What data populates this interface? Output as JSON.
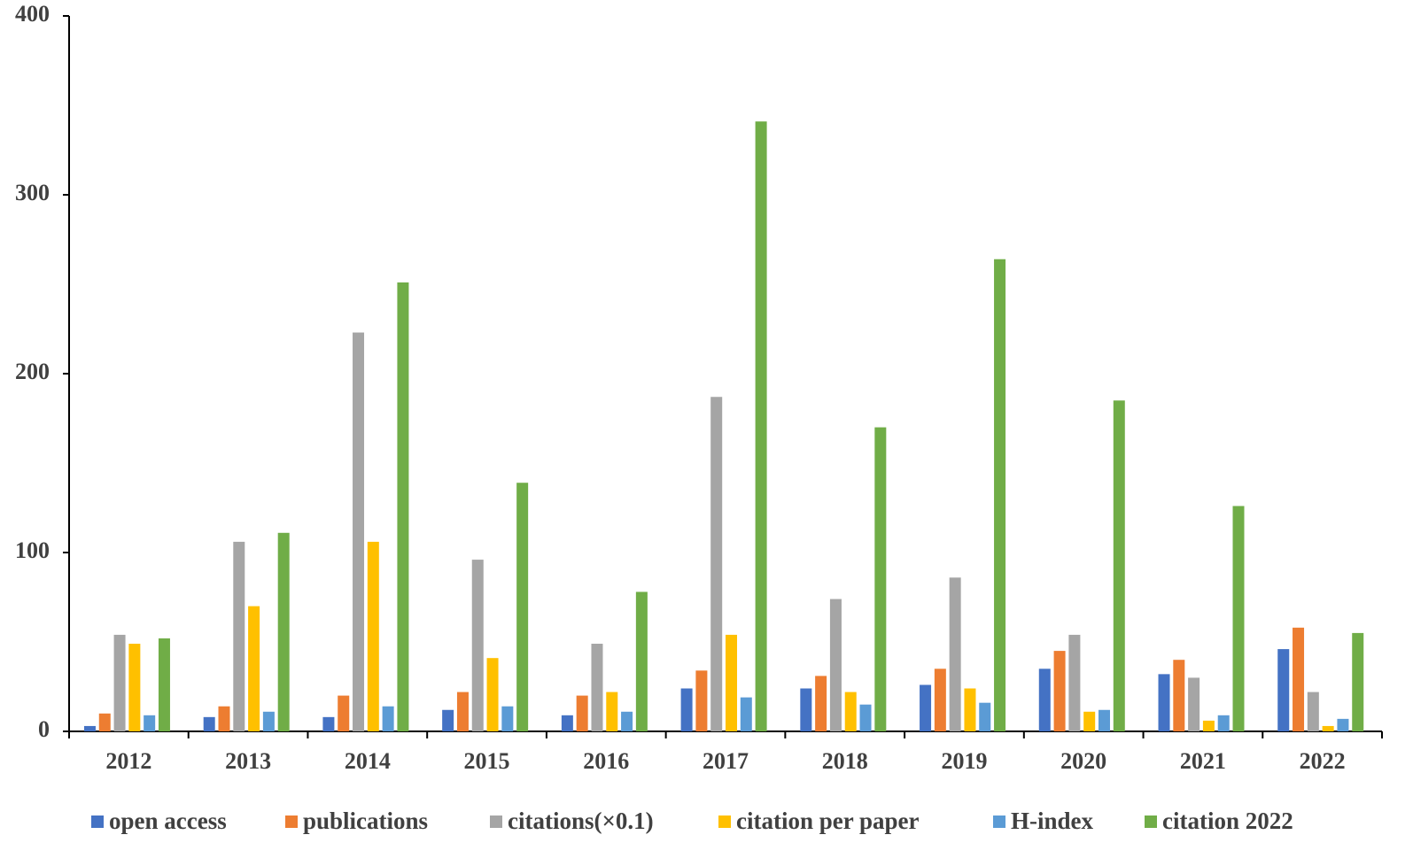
{
  "chart_data": {
    "type": "bar",
    "categories": [
      "2012",
      "2013",
      "2014",
      "2015",
      "2016",
      "2017",
      "2018",
      "2019",
      "2020",
      "2021",
      "2022"
    ],
    "series": [
      {
        "name": "open access",
        "color": "#4472c4",
        "values": [
          3,
          8,
          8,
          12,
          9,
          24,
          24,
          26,
          35,
          32,
          46
        ]
      },
      {
        "name": "publications",
        "color": "#ed7d31",
        "values": [
          10,
          14,
          20,
          22,
          20,
          34,
          31,
          35,
          45,
          40,
          58
        ]
      },
      {
        "name": "citations(×0.1)",
        "color": "#a5a5a5",
        "values": [
          54,
          106,
          223,
          96,
          49,
          187,
          74,
          86,
          54,
          30,
          22
        ]
      },
      {
        "name": "citation per paper",
        "color": "#ffc000",
        "values": [
          49,
          70,
          106,
          41,
          22,
          54,
          22,
          24,
          11,
          6,
          3
        ]
      },
      {
        "name": "H-index",
        "color": "#5b9bd5",
        "values": [
          9,
          11,
          14,
          14,
          11,
          19,
          15,
          16,
          12,
          9,
          7
        ]
      },
      {
        "name": "citation 2022",
        "color": "#70ad47",
        "values": [
          52,
          111,
          251,
          139,
          78,
          341,
          170,
          264,
          185,
          126,
          55
        ]
      }
    ],
    "ylim": [
      0,
      400
    ],
    "yticks": [
      0,
      100,
      200,
      300,
      400
    ],
    "grid": false,
    "legend": "bottom"
  }
}
